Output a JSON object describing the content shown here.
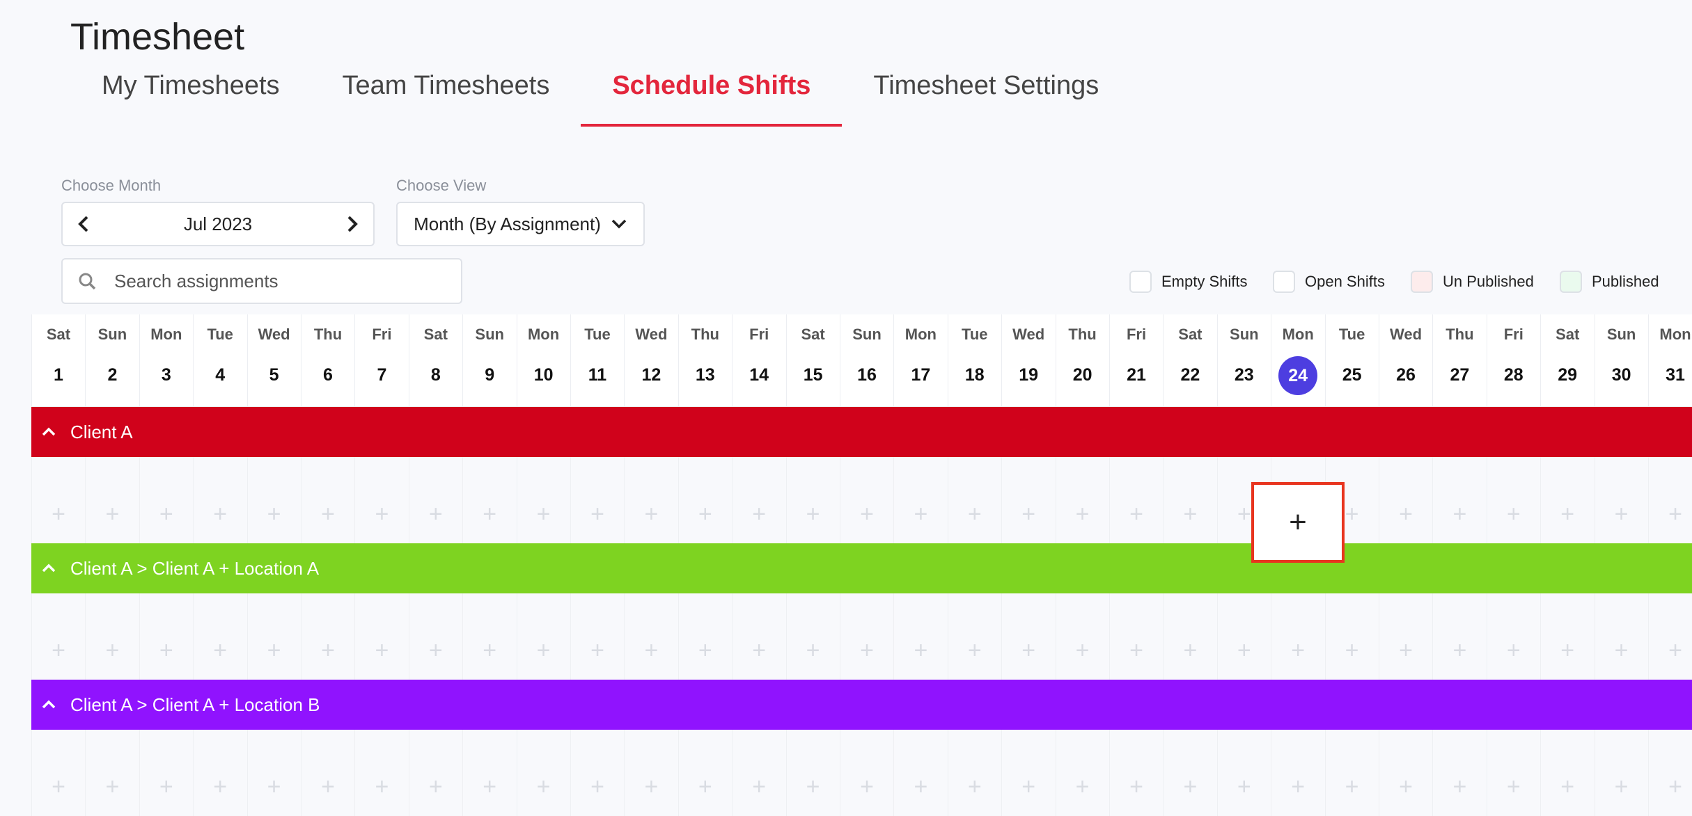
{
  "page_title": "Timesheet",
  "tabs": [
    {
      "label": "My Timesheets"
    },
    {
      "label": "Team Timesheets"
    },
    {
      "label": "Schedule Shifts",
      "active": true
    },
    {
      "label": "Timesheet Settings"
    }
  ],
  "month_picker": {
    "label": "Choose Month",
    "value": "Jul 2023",
    "prev_icon": "chevron-left-icon",
    "next_icon": "chevron-right-icon"
  },
  "view_picker": {
    "label": "Choose View",
    "value": "Month (By Assignment)",
    "icon": "chevron-down-icon"
  },
  "search": {
    "placeholder": "Search assignments",
    "value": "",
    "icon": "search-icon"
  },
  "legend": [
    {
      "label": "Empty Shifts",
      "color": "#ffffff"
    },
    {
      "label": "Open Shifts",
      "color": "#ffffff"
    },
    {
      "label": "Un Published",
      "color": "#fdecec"
    },
    {
      "label": "Published",
      "color": "#eafaee"
    }
  ],
  "days": [
    {
      "name": "Sat",
      "date": "1"
    },
    {
      "name": "Sun",
      "date": "2"
    },
    {
      "name": "Mon",
      "date": "3"
    },
    {
      "name": "Tue",
      "date": "4"
    },
    {
      "name": "Wed",
      "date": "5"
    },
    {
      "name": "Thu",
      "date": "6"
    },
    {
      "name": "Fri",
      "date": "7"
    },
    {
      "name": "Sat",
      "date": "8"
    },
    {
      "name": "Sun",
      "date": "9"
    },
    {
      "name": "Mon",
      "date": "10"
    },
    {
      "name": "Tue",
      "date": "11"
    },
    {
      "name": "Wed",
      "date": "12"
    },
    {
      "name": "Thu",
      "date": "13"
    },
    {
      "name": "Fri",
      "date": "14"
    },
    {
      "name": "Sat",
      "date": "15"
    },
    {
      "name": "Sun",
      "date": "16"
    },
    {
      "name": "Mon",
      "date": "17"
    },
    {
      "name": "Tue",
      "date": "18"
    },
    {
      "name": "Wed",
      "date": "19"
    },
    {
      "name": "Thu",
      "date": "20"
    },
    {
      "name": "Fri",
      "date": "21"
    },
    {
      "name": "Sat",
      "date": "22"
    },
    {
      "name": "Sun",
      "date": "23"
    },
    {
      "name": "Mon",
      "date": "24",
      "today": true
    },
    {
      "name": "Tue",
      "date": "25"
    },
    {
      "name": "Wed",
      "date": "26"
    },
    {
      "name": "Thu",
      "date": "27"
    },
    {
      "name": "Fri",
      "date": "28"
    },
    {
      "name": "Sat",
      "date": "29"
    },
    {
      "name": "Sun",
      "date": "30"
    },
    {
      "name": "Mon",
      "date": "31"
    }
  ],
  "groups": [
    {
      "label": "Client A",
      "color": "#d0021b",
      "icon": "chevron-up-icon"
    },
    {
      "label": "Client A > Client A + Location A",
      "color": "#7ed321",
      "icon": "chevron-up-icon"
    },
    {
      "label": "Client A > Client A + Location B",
      "color": "#9013fe",
      "icon": "chevron-up-icon"
    }
  ],
  "add_shift_symbol": "+",
  "highlighted_cell": {
    "group": 0,
    "date": "24"
  }
}
